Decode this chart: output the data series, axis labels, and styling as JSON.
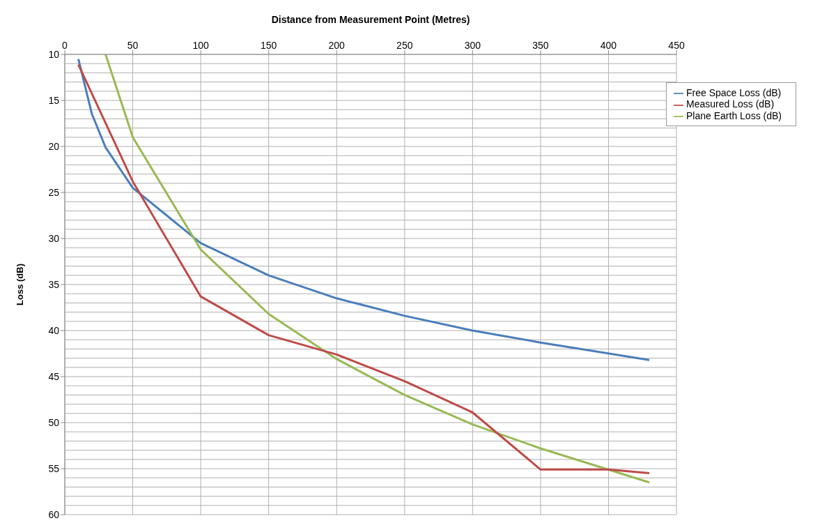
{
  "chart_data": {
    "type": "line",
    "xlabel": "Distance from Measurement Point (Metres)",
    "ylabel": "Loss (dB)",
    "xlim": [
      0,
      450
    ],
    "xticks": [
      0,
      50,
      100,
      150,
      200,
      250,
      300,
      350,
      400,
      450
    ],
    "ylim": [
      60,
      10
    ],
    "yticks": [
      10,
      15,
      20,
      25,
      30,
      35,
      40,
      45,
      50,
      55,
      60
    ],
    "grid": true,
    "legend": "top right",
    "marker": "none",
    "line_style": "solid",
    "series": [
      {
        "name": "Free Space Loss (dB)",
        "color": "#4a7ebb",
        "x": [
          10,
          20,
          30,
          50,
          100,
          150,
          200,
          250,
          300,
          350,
          430
        ],
        "values": [
          10.5,
          16.5,
          20.1,
          24.5,
          30.5,
          34.0,
          36.5,
          38.4,
          40.0,
          41.3,
          43.2
        ]
      },
      {
        "name": "Plane Earth Loss (dB)",
        "color": "#98b954",
        "x": [
          30,
          50,
          100,
          150,
          200,
          250,
          300,
          350,
          430
        ],
        "values": [
          10.0,
          19.0,
          31.2,
          38.2,
          43.1,
          47.0,
          50.2,
          52.8,
          56.5
        ]
      },
      {
        "name": "Measured Loss (dB)",
        "color": "#be4b48",
        "x": [
          10,
          50,
          100,
          150,
          200,
          250,
          300,
          350,
          400,
          430
        ],
        "values": [
          11.1,
          23.8,
          36.3,
          40.5,
          42.6,
          45.5,
          48.9,
          55.1,
          55.1,
          55.5
        ]
      }
    ]
  }
}
